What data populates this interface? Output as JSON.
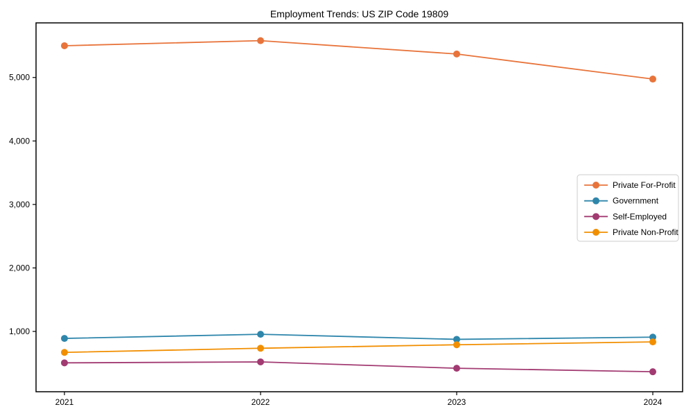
{
  "chart_data": {
    "type": "line",
    "title": "Employment Trends: US ZIP Code 19809",
    "xlabel": "",
    "ylabel": "",
    "categories": [
      "2021",
      "2022",
      "2023",
      "2024"
    ],
    "series": [
      {
        "name": "Private For-Profit",
        "color": "#E8743B",
        "values": [
          5500,
          5580,
          5370,
          4975
        ]
      },
      {
        "name": "Government",
        "color": "#2E86AB",
        "values": [
          890,
          955,
          875,
          910
        ]
      },
      {
        "name": "Self-Employed",
        "color": "#A23B72",
        "values": [
          505,
          520,
          420,
          365
        ]
      },
      {
        "name": "Private Non-Profit",
        "color": "#F18F01",
        "values": [
          670,
          735,
          790,
          835
        ]
      }
    ],
    "yticks": [
      {
        "value": 1000,
        "label": "1,000"
      },
      {
        "value": 2000,
        "label": "2,000"
      },
      {
        "value": 3000,
        "label": "3,000"
      },
      {
        "value": 4000,
        "label": "4,000"
      },
      {
        "value": 5000,
        "label": "5,000"
      }
    ],
    "ylim": [
      50,
      5860
    ],
    "grid": false,
    "legend_position": "right",
    "marker": "circle",
    "axis_color": "#000000",
    "tick_label_color": "#000000",
    "legend_border_color": "#cccccc"
  }
}
